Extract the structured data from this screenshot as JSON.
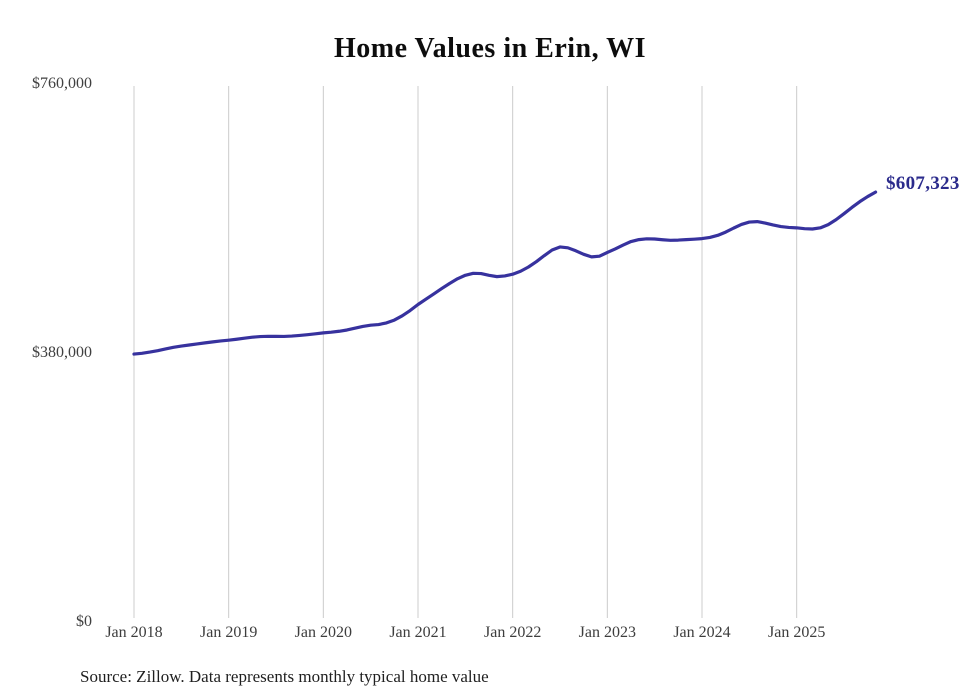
{
  "title": "Home Values in Erin, WI",
  "source_note": "Source: Zillow. Data represents monthly typical home value",
  "end_label": "$607,323",
  "colors": {
    "line": "#37329e",
    "end_label": "#2b2b8c",
    "grid": "#cccccc",
    "axis_text": "#3d3d3d",
    "title_text": "#0d0d0d"
  },
  "chart_data": {
    "type": "line",
    "title": "Home Values in Erin, WI",
    "xlabel": "",
    "ylabel": "",
    "ylim": [
      0,
      760000
    ],
    "grid": "vertical-only",
    "legend": "none",
    "y_ticks": [
      {
        "label": "$0",
        "value": 0
      },
      {
        "label": "$380,000",
        "value": 380000
      },
      {
        "label": "$760,000",
        "value": 760000
      }
    ],
    "x_ticks": [
      "Jan 2018",
      "Jan 2019",
      "Jan 2020",
      "Jan 2021",
      "Jan 2022",
      "Jan 2023",
      "Jan 2024",
      "Jan 2025"
    ],
    "x_start": "2018-01",
    "x_end": "2025-11",
    "frequency": "monthly",
    "final_value": 607323,
    "series": [
      {
        "name": "Typical home value",
        "values": [
          378500,
          379600,
          381300,
          383300,
          385700,
          388000,
          389800,
          391300,
          392800,
          394300,
          395700,
          397000,
          398100,
          399400,
          400900,
          402300,
          403200,
          403600,
          403500,
          403400,
          403900,
          404800,
          405900,
          407100,
          408400,
          409400,
          410700,
          412500,
          415000,
          417500,
          419300,
          420200,
          422500,
          426500,
          432500,
          440000,
          448500,
          456000,
          463500,
          471000,
          478200,
          484800,
          489800,
          492600,
          492200,
          489800,
          487900,
          488900,
          491300,
          495500,
          501500,
          509000,
          517500,
          525500,
          529800,
          528600,
          524400,
          519400,
          515800,
          516800,
          522000,
          527000,
          532500,
          537500,
          540200,
          541300,
          541000,
          540000,
          539200,
          539500,
          540200,
          540800,
          541600,
          543200,
          546200,
          550800,
          556400,
          561600,
          565000,
          565600,
          563600,
          560900,
          558600,
          557400,
          556800,
          555600,
          555200,
          556800,
          561400,
          568400,
          576800,
          585600,
          593800,
          601000,
          607323
        ]
      }
    ]
  }
}
